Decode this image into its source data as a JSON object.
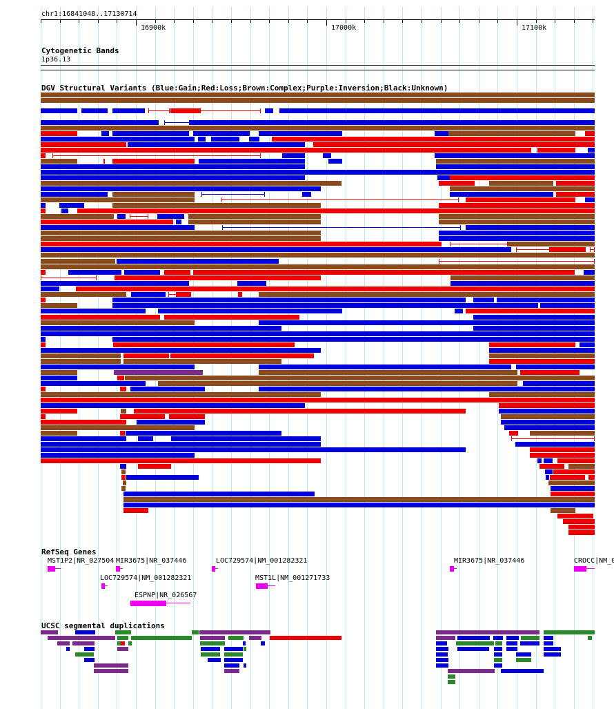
{
  "locus": "chr1:16841048..17130714",
  "ruler": {
    "ticks": [
      "16900k",
      "17000k",
      "17100k"
    ]
  },
  "cytobands": {
    "title": "Cytogenetic Bands",
    "band": "1p36.13"
  },
  "dgv": {
    "title": "DGV Structural Variants (Blue:Gain;Red:Loss;Brown:Complex;Purple:Inversion;Black:Unknown)",
    "colors": {
      "gain": "#0000dd",
      "loss": "#ee0000",
      "complex": "#8b4a1c",
      "inversion": "#7b2a8a",
      "unknown": "#000000"
    }
  },
  "refseq": {
    "title": "RefSeq Genes",
    "color": "#ee00ee",
    "genes": [
      {
        "label": "MST1P2|NR_027504"
      },
      {
        "label": "MIR3675|NR_037446"
      },
      {
        "label": "LOC729574|NM_001282321"
      },
      {
        "label": "MIR3675|NR_037446"
      },
      {
        "label": "CROCC|NM_0"
      },
      {
        "label": "LOC729574|NM_001282321"
      },
      {
        "label": "MST1L|NM_001271733"
      },
      {
        "label": "ESPNP|NR_026567"
      }
    ]
  },
  "segdups": {
    "title": "UCSC segmental duplications",
    "colors": {
      "purple": "#7b2a8a",
      "green": "#2a8a2a",
      "blue": "#0000dd",
      "red": "#ee0000"
    }
  }
}
